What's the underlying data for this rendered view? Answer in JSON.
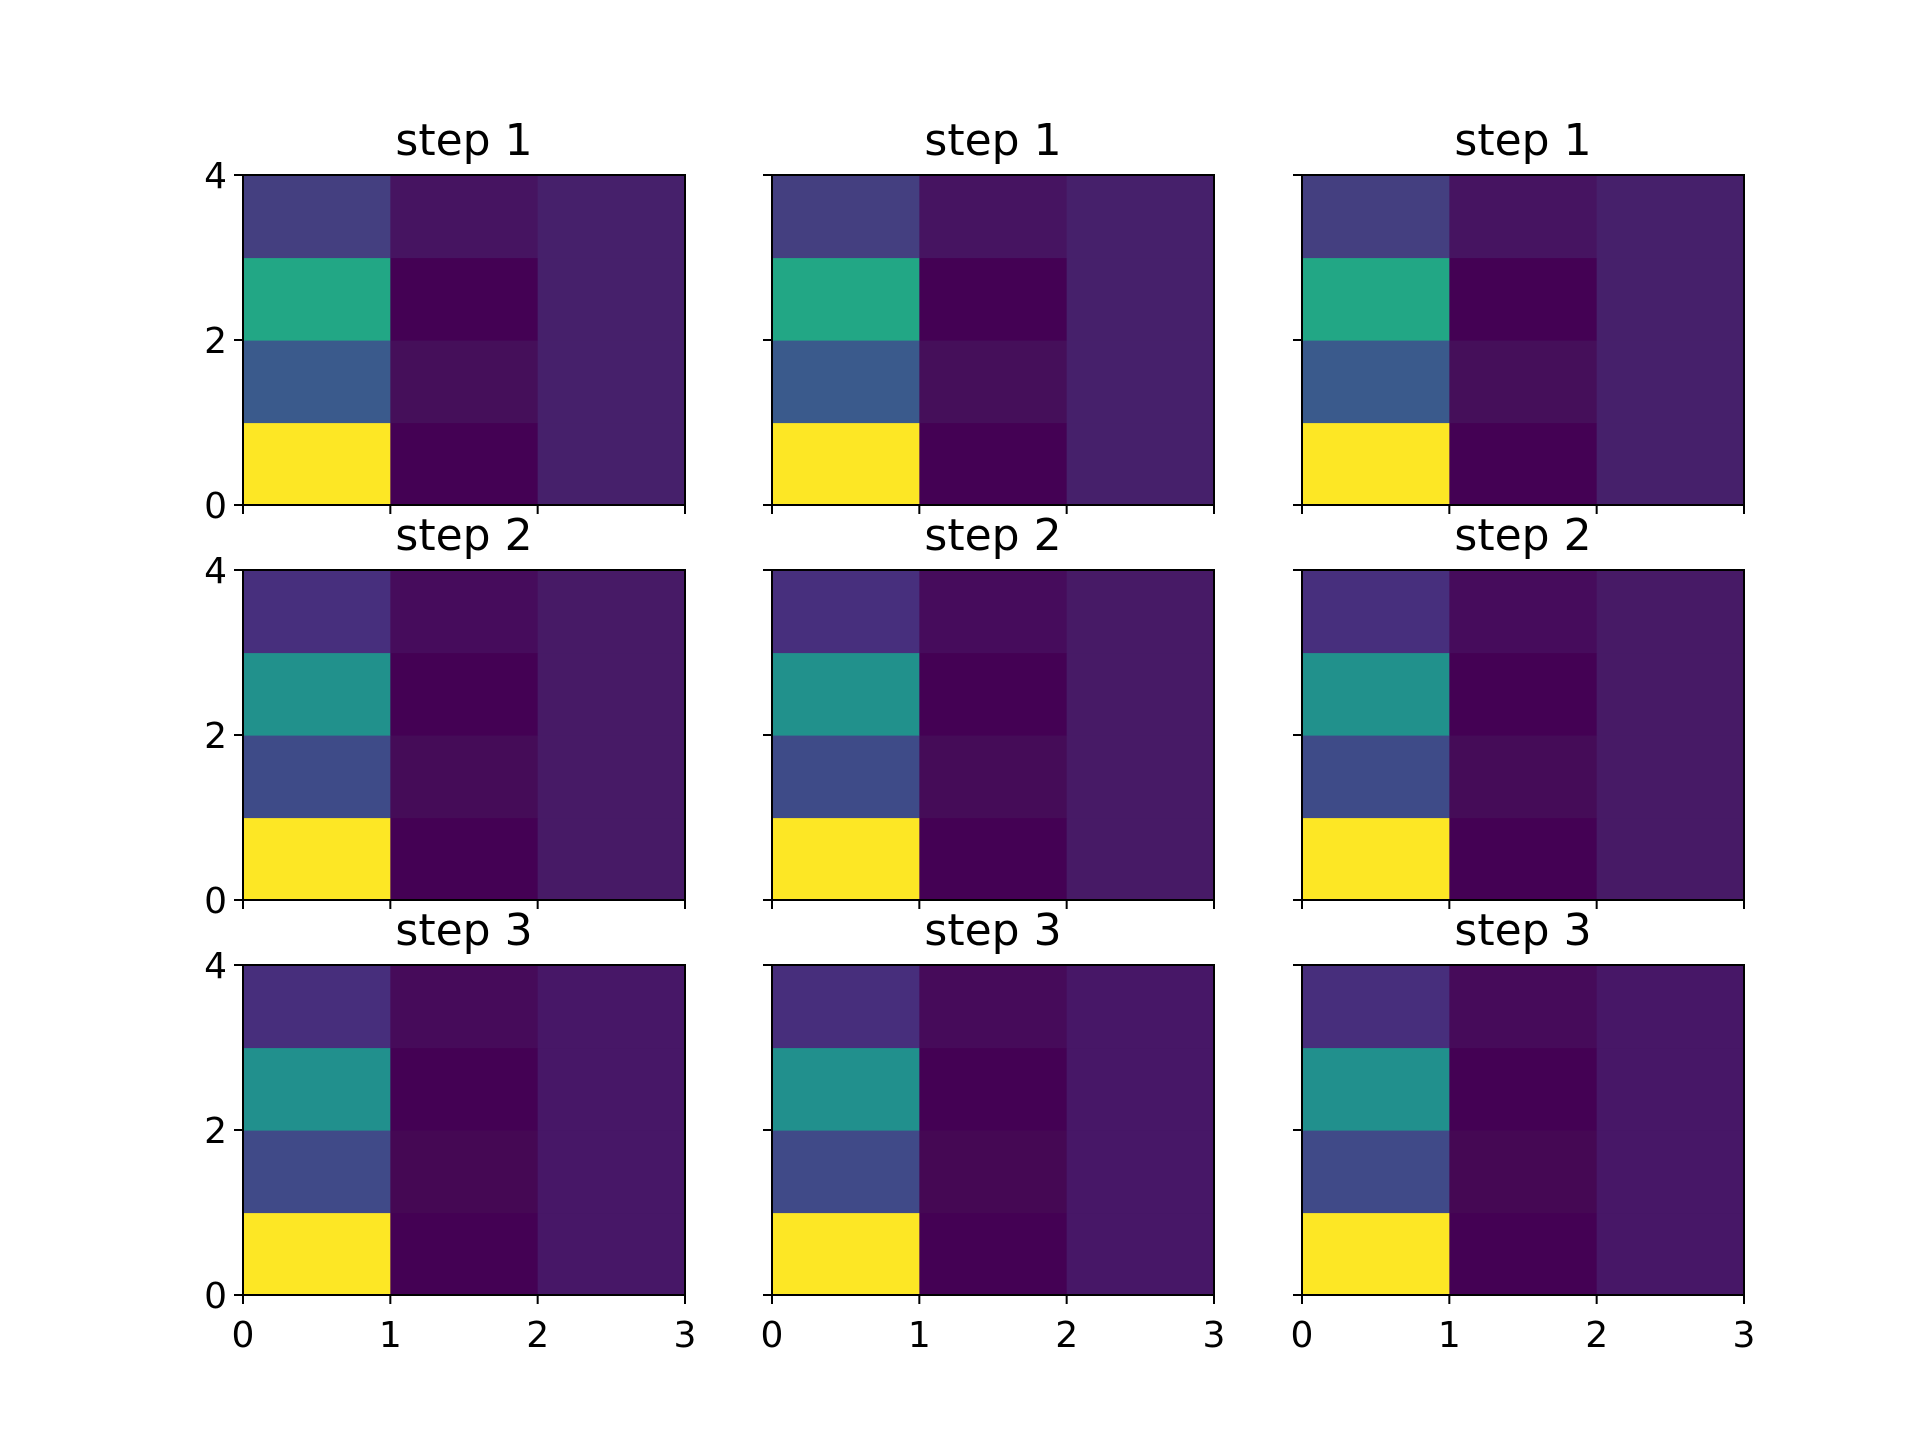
{
  "chart_data": [
    {
      "type": "heatmap",
      "title": "step 1",
      "row": 0,
      "col": 0,
      "xlim": [
        0,
        3
      ],
      "ylim": [
        0,
        4
      ],
      "xticks": [],
      "yticks": [
        "0",
        "2",
        "4"
      ],
      "cells": [
        [
          "#fde725",
          "#440154",
          "#46206b"
        ],
        [
          "#3a5a8c",
          "#450f5a",
          "#46206b"
        ],
        [
          "#22a785",
          "#440154",
          "#46206b"
        ],
        [
          "#443f80",
          "#461461",
          "#46206b"
        ]
      ]
    },
    {
      "type": "heatmap",
      "title": "step 1",
      "row": 0,
      "col": 1,
      "xlim": [
        0,
        3
      ],
      "ylim": [
        0,
        4
      ],
      "xticks": [],
      "yticks": [],
      "cells": [
        [
          "#fde725",
          "#440154",
          "#46206b"
        ],
        [
          "#3a5a8c",
          "#450f5a",
          "#46206b"
        ],
        [
          "#22a785",
          "#440154",
          "#46206b"
        ],
        [
          "#443f80",
          "#461461",
          "#46206b"
        ]
      ]
    },
    {
      "type": "heatmap",
      "title": "step 1",
      "row": 0,
      "col": 2,
      "xlim": [
        0,
        3
      ],
      "ylim": [
        0,
        4
      ],
      "xticks": [],
      "yticks": [],
      "cells": [
        [
          "#fde725",
          "#440154",
          "#46206b"
        ],
        [
          "#3a5a8c",
          "#450f5a",
          "#46206b"
        ],
        [
          "#22a785",
          "#440154",
          "#46206b"
        ],
        [
          "#443f80",
          "#461461",
          "#46206b"
        ]
      ]
    },
    {
      "type": "heatmap",
      "title": "step 2",
      "row": 1,
      "col": 0,
      "xlim": [
        0,
        3
      ],
      "ylim": [
        0,
        4
      ],
      "xticks": [],
      "yticks": [
        "0",
        "2",
        "4"
      ],
      "cells": [
        [
          "#fde725",
          "#440154",
          "#471a66"
        ],
        [
          "#3e4b88",
          "#450c58",
          "#471a66"
        ],
        [
          "#21918c",
          "#440154",
          "#471a66"
        ],
        [
          "#472f7d",
          "#460c5c",
          "#471a66"
        ]
      ]
    },
    {
      "type": "heatmap",
      "title": "step 2",
      "row": 1,
      "col": 1,
      "xlim": [
        0,
        3
      ],
      "ylim": [
        0,
        4
      ],
      "xticks": [],
      "yticks": [],
      "cells": [
        [
          "#fde725",
          "#440154",
          "#471a66"
        ],
        [
          "#3e4b88",
          "#450c58",
          "#471a66"
        ],
        [
          "#21918c",
          "#440154",
          "#471a66"
        ],
        [
          "#472f7d",
          "#460c5c",
          "#471a66"
        ]
      ]
    },
    {
      "type": "heatmap",
      "title": "step 2",
      "row": 1,
      "col": 2,
      "xlim": [
        0,
        3
      ],
      "ylim": [
        0,
        4
      ],
      "xticks": [],
      "yticks": [],
      "cells": [
        [
          "#fde725",
          "#440154",
          "#471a66"
        ],
        [
          "#3e4b88",
          "#450c58",
          "#471a66"
        ],
        [
          "#21918c",
          "#440154",
          "#471a66"
        ],
        [
          "#472f7d",
          "#460c5c",
          "#471a66"
        ]
      ]
    },
    {
      "type": "heatmap",
      "title": "step 3",
      "row": 2,
      "col": 0,
      "xlim": [
        0,
        3
      ],
      "ylim": [
        0,
        4
      ],
      "xticks": [
        "0",
        "1",
        "2",
        "3"
      ],
      "yticks": [
        "0",
        "2",
        "4"
      ],
      "cells": [
        [
          "#fde725",
          "#440154",
          "#471767"
        ],
        [
          "#404a88",
          "#450854",
          "#471767"
        ],
        [
          "#21908d",
          "#440154",
          "#471767"
        ],
        [
          "#472e7c",
          "#460b5a",
          "#471767"
        ]
      ]
    },
    {
      "type": "heatmap",
      "title": "step 3",
      "row": 2,
      "col": 1,
      "xlim": [
        0,
        3
      ],
      "ylim": [
        0,
        4
      ],
      "xticks": [
        "0",
        "1",
        "2",
        "3"
      ],
      "yticks": [],
      "cells": [
        [
          "#fde725",
          "#440154",
          "#471767"
        ],
        [
          "#404a88",
          "#450854",
          "#471767"
        ],
        [
          "#21908d",
          "#440154",
          "#471767"
        ],
        [
          "#472e7c",
          "#460b5a",
          "#471767"
        ]
      ]
    },
    {
      "type": "heatmap",
      "title": "step 3",
      "row": 2,
      "col": 2,
      "xlim": [
        0,
        3
      ],
      "ylim": [
        0,
        4
      ],
      "xticks": [
        "0",
        "1",
        "2",
        "3"
      ],
      "yticks": [],
      "cells": [
        [
          "#fde725",
          "#440154",
          "#471767"
        ],
        [
          "#404a88",
          "#450854",
          "#471767"
        ],
        [
          "#21908d",
          "#440154",
          "#471767"
        ],
        [
          "#472e7c",
          "#460b5a",
          "#471767"
        ]
      ]
    }
  ]
}
